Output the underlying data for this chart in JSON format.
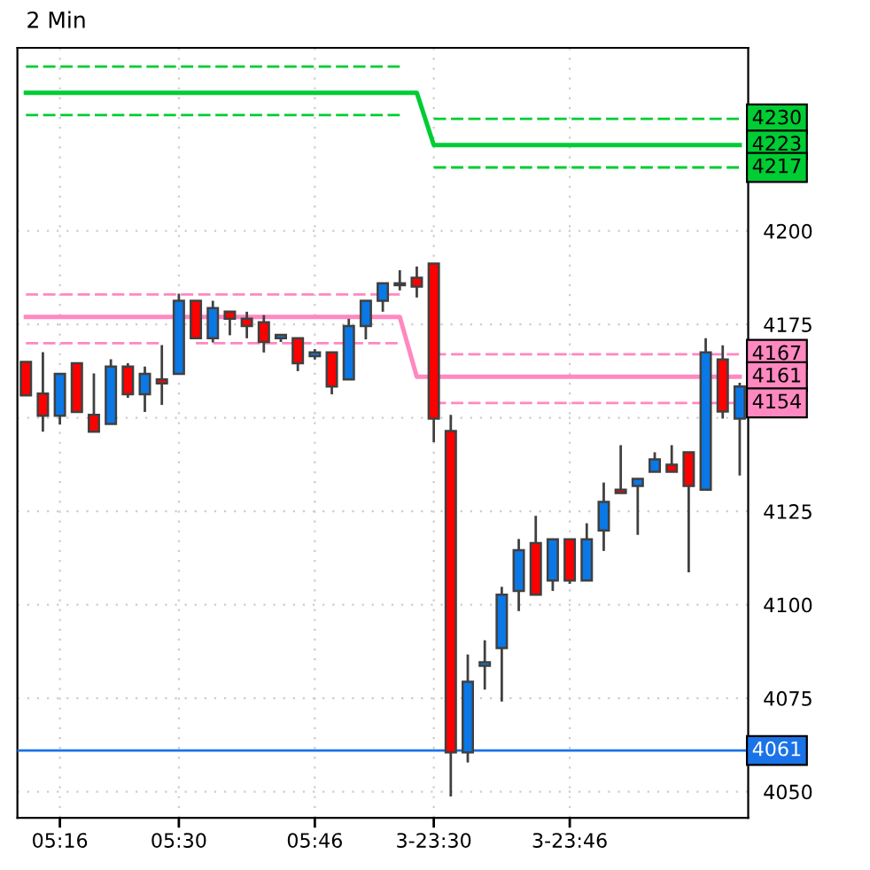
{
  "chart_data": {
    "type": "candlestick",
    "title": "2 Min",
    "categories": [
      null,
      null,
      "05:16",
      null,
      null,
      null,
      null,
      null,
      null,
      "05:30",
      null,
      null,
      null,
      null,
      null,
      null,
      null,
      "05:46",
      null,
      null,
      null,
      null,
      null,
      null,
      "3-23:30",
      null,
      null,
      null,
      null,
      null,
      null,
      null,
      "3-23:46",
      null,
      null,
      null,
      null,
      null,
      null,
      null,
      null,
      null,
      null
    ],
    "ylim": [
      4043,
      4249
    ],
    "yticks": [
      4050,
      4075,
      4100,
      4125,
      {
        "value": 4150,
        "label": null
      },
      4175,
      4200
    ],
    "grid": true,
    "series": [
      {
        "type": "line",
        "color": "#00cc33",
        "line_style": "dashed",
        "values": [
          4244,
          4244,
          4244,
          4244,
          4244,
          4244,
          4244,
          4244,
          4244,
          4244,
          4244,
          4244,
          4244,
          4244,
          4244,
          4244,
          4244,
          4244,
          4244,
          4244,
          4244,
          4244,
          4244,
          null,
          4230,
          4230,
          4230,
          4230,
          4230,
          4230,
          4230,
          4230,
          4230,
          4230,
          4230,
          4230,
          4230,
          4230,
          4230,
          4230,
          4230,
          4230,
          4230
        ],
        "value_labels": [
          null,
          null,
          null,
          null,
          null,
          null,
          null,
          null,
          null,
          null,
          null,
          null,
          null,
          null,
          null,
          null,
          null,
          null,
          null,
          null,
          null,
          null,
          null,
          null,
          null,
          null,
          null,
          null,
          null,
          null,
          null,
          null,
          null,
          null,
          null,
          null,
          null,
          null,
          null,
          null,
          null,
          null,
          "4230"
        ]
      },
      {
        "type": "line",
        "color": "#00cc33",
        "line_style": "solid",
        "values": [
          4237,
          4237,
          4237,
          4237,
          4237,
          4237,
          4237,
          4237,
          4237,
          4237,
          4237,
          4237,
          4237,
          4237,
          4237,
          4237,
          4237,
          4237,
          4237,
          4237,
          4237,
          4237,
          4237,
          4237,
          4223,
          4223,
          4223,
          4223,
          4223,
          4223,
          4223,
          4223,
          4223,
          4223,
          4223,
          4223,
          4223,
          4223,
          4223,
          4223,
          4223,
          4223,
          4223
        ],
        "value_labels": [
          null,
          null,
          null,
          null,
          null,
          null,
          null,
          null,
          null,
          null,
          null,
          null,
          null,
          null,
          null,
          null,
          null,
          null,
          null,
          null,
          null,
          null,
          null,
          null,
          null,
          null,
          null,
          null,
          null,
          null,
          null,
          null,
          null,
          null,
          null,
          null,
          null,
          null,
          null,
          null,
          null,
          null,
          "4223"
        ]
      },
      {
        "type": "line",
        "color": "#00cc33",
        "line_style": "dashed",
        "values": [
          4231,
          4231,
          4231,
          4231,
          4231,
          4231,
          4231,
          4231,
          4231,
          4231,
          4231,
          4231,
          4231,
          4231,
          4231,
          4231,
          4231,
          4231,
          4231,
          4231,
          4231,
          4231,
          4231,
          null,
          4217,
          4217,
          4217,
          4217,
          4217,
          4217,
          4217,
          4217,
          4217,
          4217,
          4217,
          4217,
          4217,
          4217,
          4217,
          4217,
          4217,
          4217,
          4217
        ],
        "value_labels": [
          null,
          null,
          null,
          null,
          null,
          null,
          null,
          null,
          null,
          null,
          null,
          null,
          null,
          null,
          null,
          null,
          null,
          null,
          null,
          null,
          null,
          null,
          null,
          null,
          null,
          null,
          null,
          null,
          null,
          null,
          null,
          null,
          null,
          null,
          null,
          null,
          null,
          null,
          null,
          null,
          null,
          null,
          "4217"
        ]
      },
      {
        "type": "line",
        "color": "#ff88c0",
        "line_style": "dashed",
        "values": [
          4183,
          4183,
          4183,
          4183,
          4183,
          4183,
          4183,
          4183,
          4183,
          4183,
          4183,
          4183,
          4183,
          4183,
          4183,
          4183,
          4183,
          4183,
          4183,
          4183,
          4183,
          4183,
          4183,
          null,
          4167,
          4167,
          4167,
          4167,
          4167,
          4167,
          4167,
          4167,
          4167,
          4167,
          4167,
          4167,
          4167,
          4167,
          4167,
          4167,
          4167,
          4167,
          4167
        ],
        "value_labels": [
          null,
          null,
          null,
          null,
          null,
          null,
          null,
          null,
          null,
          null,
          null,
          null,
          null,
          null,
          null,
          null,
          null,
          null,
          null,
          null,
          null,
          null,
          null,
          null,
          null,
          null,
          null,
          null,
          null,
          null,
          null,
          null,
          null,
          null,
          null,
          null,
          null,
          null,
          null,
          null,
          null,
          null,
          "4167"
        ]
      },
      {
        "type": "line",
        "color": "#ff88c0",
        "line_style": "solid",
        "values": [
          4177,
          4177,
          4177,
          4177,
          4177,
          4177,
          4177,
          4177,
          4177,
          4177,
          4177,
          4177,
          4177,
          4177,
          4177,
          4177,
          4177,
          4177,
          4177,
          4177,
          4177,
          4177,
          4177,
          4161,
          4161,
          4161,
          4161,
          4161,
          4161,
          4161,
          4161,
          4161,
          4161,
          4161,
          4161,
          4161,
          4161,
          4161,
          4161,
          4161,
          4161,
          4161,
          4161
        ],
        "value_labels": [
          null,
          null,
          null,
          null,
          null,
          null,
          null,
          null,
          null,
          null,
          null,
          null,
          null,
          null,
          null,
          null,
          null,
          null,
          null,
          null,
          null,
          null,
          null,
          null,
          null,
          null,
          null,
          null,
          null,
          null,
          null,
          null,
          null,
          null,
          null,
          null,
          null,
          null,
          null,
          null,
          null,
          null,
          "4161"
        ]
      },
      {
        "type": "line",
        "color": "#ff88c0",
        "line_style": "dashed",
        "values": [
          4170,
          4170,
          4170,
          4170,
          4170,
          4170,
          4170,
          4170,
          4170,
          null,
          4170,
          4170,
          4170,
          4170,
          4170,
          4170,
          4170,
          4170,
          4170,
          4170,
          4170,
          4170,
          4170,
          null,
          4154,
          4154,
          4154,
          4154,
          4154,
          4154,
          4154,
          4154,
          4154,
          4154,
          4154,
          4154,
          4154,
          4154,
          4154,
          4154,
          4154,
          4154,
          4154
        ],
        "value_labels": [
          null,
          null,
          null,
          null,
          null,
          null,
          null,
          null,
          null,
          null,
          null,
          null,
          null,
          null,
          null,
          null,
          null,
          null,
          null,
          null,
          null,
          null,
          null,
          null,
          null,
          null,
          null,
          null,
          null,
          null,
          null,
          null,
          null,
          null,
          null,
          null,
          null,
          null,
          null,
          null,
          null,
          null,
          "4154"
        ]
      }
    ],
    "ohlc": [
      [
        4165,
        4165,
        4156,
        4156
      ],
      [
        4156.5,
        4167.6,
        4146.3,
        4150.6
      ],
      [
        4150.6,
        4161.8,
        4148.2,
        4161.8
      ],
      [
        4164.6,
        4164.6,
        4151.6,
        4151.6
      ],
      [
        4150.8,
        4161.9,
        4146.3,
        4146.3
      ],
      [
        4148.4,
        4165.7,
        4148.4,
        4163.7
      ],
      [
        4163.7,
        4164.6,
        4155.4,
        4156.3
      ],
      [
        4156.3,
        4163.7,
        4151.6,
        4161.8
      ],
      [
        4160.3,
        4169.5,
        4153.5,
        4159.2
      ],
      [
        4161.8,
        4183.2,
        4161.8,
        4181.3
      ],
      [
        4181.3,
        4181.3,
        4171.3,
        4171.3
      ],
      [
        4171.3,
        4181.3,
        4170.2,
        4179.4
      ],
      [
        4178.4,
        4178.4,
        4172.1,
        4176.5
      ],
      [
        4176.5,
        4178.4,
        4171.3,
        4174.6
      ],
      [
        4175.6,
        4177.5,
        4167.5,
        4170.3
      ],
      [
        4171.3,
        4172.2,
        4170.3,
        4172.2
      ],
      [
        4171.3,
        4171.3,
        4162.5,
        4164.6
      ],
      [
        4166.5,
        4168.4,
        4165.6,
        4167.5
      ],
      [
        4167.5,
        4167.5,
        4156.3,
        4158.4
      ],
      [
        4160.3,
        4176.5,
        4160.3,
        4174.6
      ],
      [
        4174.6,
        4181.3,
        4171,
        4181.3
      ],
      [
        4181.3,
        4186,
        4178.4,
        4186
      ],
      [
        4185.5,
        4189.5,
        4184.1,
        4186
      ],
      [
        4187.5,
        4190.5,
        4182.2,
        4185.1
      ],
      [
        4191.3,
        4191.3,
        4143.5,
        4149.8
      ],
      [
        4146.5,
        4150.8,
        4048.7,
        4060.5
      ],
      [
        4060.5,
        4086.7,
        4057.8,
        4079.4
      ],
      [
        4083.7,
        4090.5,
        4077.3,
        4084.6
      ],
      [
        4088.4,
        4104.8,
        4074.1,
        4102.7
      ],
      [
        4103.7,
        4117.6,
        4098.3,
        4114.6
      ],
      [
        4116.5,
        4123.8,
        4102.7,
        4102.7
      ],
      [
        4106.5,
        4117.5,
        4103.7,
        4117.5
      ],
      [
        4117.5,
        4117.5,
        4105.6,
        4106.5
      ],
      [
        4106.5,
        4121.8,
        4106.5,
        4117.5
      ],
      [
        4119.9,
        4132.7,
        4114.4,
        4127.5
      ],
      [
        4130.8,
        4142.7,
        4129.9,
        4129.9
      ],
      [
        4131.8,
        4133.7,
        4118.7,
        4133.7
      ],
      [
        4135.6,
        4140.8,
        4135.6,
        4138.9
      ],
      [
        4137.5,
        4142.7,
        4135.6,
        4135.6
      ],
      [
        4140.8,
        4140.8,
        4108.7,
        4131.8
      ],
      [
        4130.8,
        4171.3,
        4130.8,
        4167.5
      ],
      [
        4165.6,
        4169.4,
        4149.8,
        4151.7
      ],
      [
        4149.8,
        4159.4,
        4134.6,
        4158.4
      ]
    ],
    "colors": [
      "#ff0000",
      "#ff0000",
      "#0a78e6",
      "#ff0000",
      "#ff0000",
      "#0a78e6",
      "#ff0000",
      "#0a78e6",
      "#ff0000",
      "#0a78e6",
      "#ff0000",
      "#0a78e6",
      "#ff0000",
      "#ff0000",
      "#ff0000",
      "#0a78e6",
      "#ff0000",
      "#0a78e6",
      "#ff0000",
      "#0a78e6",
      "#0a78e6",
      "#0a78e6",
      "#0a78e6",
      "#ff0000",
      "#ff0000",
      "#ff0000",
      "#0a78e6",
      "#0a78e6",
      "#0a78e6",
      "#0a78e6",
      "#ff0000",
      "#0a78e6",
      "#ff0000",
      "#0a78e6",
      "#0a78e6",
      "#ff0000",
      "#0a78e6",
      "#0a78e6",
      "#ff0000",
      "#ff0000",
      "#0a78e6",
      "#ff0000",
      "#0a78e6"
    ],
    "ref_lines": [
      {
        "axis": "y",
        "value": 4061,
        "label": "4061",
        "color": "#1a73e8"
      }
    ]
  }
}
